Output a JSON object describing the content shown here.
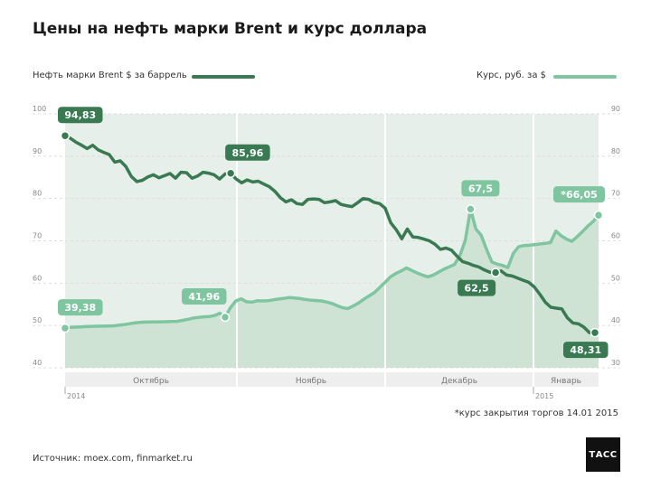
{
  "title": "Цены на нефть марки Brent и курс доллара",
  "legend": {
    "brent": "Нефть марки Brent  $ за баррель",
    "usd": "Курс, руб. за $"
  },
  "footnote": "*курс закрытия торгов 14.01 2015",
  "source": "Источник: moex.com, finmarket.ru",
  "logo_text": "ТАСС",
  "colors": {
    "brent": "#3a7a52",
    "usd": "#7fc6a0",
    "fill_light": "#e6efe9",
    "fill_dark": "#cfe3d5",
    "grid": "#dddddd",
    "axis_text": "#888888"
  },
  "chart_data": {
    "type": "line",
    "title": "Цены на нефть марки Brent и курс доллара",
    "x_period_labels": [
      "2014",
      "2015"
    ],
    "month_labels": [
      "Октябрь",
      "Ноябрь",
      "Декабрь",
      "Январь"
    ],
    "y_left": {
      "label": "",
      "range": [
        40,
        100
      ],
      "ticks": [
        100,
        90,
        80,
        70,
        60,
        50,
        40
      ],
      "tick_labels": [
        "100",
        "90",
        "80",
        "70",
        "60",
        "50",
        "40"
      ]
    },
    "y_right": {
      "label": "",
      "range": [
        30,
        90
      ],
      "ticks": [
        90,
        80,
        70,
        60,
        50,
        40,
        30
      ],
      "tick_labels": [
        "90",
        "80",
        "70",
        "60",
        "50",
        "40",
        "30"
      ]
    },
    "grid": true,
    "legend_position": "top",
    "series": [
      {
        "name": "Нефть марки Brent  $ за баррель",
        "axis": "left",
        "values": [
          94.83,
          94.2,
          93.3,
          92.6,
          91.8,
          92.6,
          91.5,
          90.9,
          90.4,
          88.6,
          88.9,
          87.6,
          85.2,
          84.0,
          84.3,
          85.1,
          85.6,
          84.9,
          85.4,
          85.9,
          84.8,
          86.2,
          86.1,
          84.8,
          85.3,
          86.2,
          86.0,
          85.6,
          84.6,
          85.8,
          85.96,
          84.6,
          83.7,
          84.4,
          83.9,
          84.1,
          83.4,
          82.8,
          81.7,
          80.2,
          79.2,
          79.7,
          78.8,
          78.6,
          79.8,
          79.9,
          79.8,
          79.0,
          79.2,
          79.5,
          78.6,
          78.3,
          78.1,
          79.0,
          80.0,
          79.8,
          79.1,
          78.8,
          77.7,
          74.3,
          72.6,
          70.5,
          72.8,
          70.9,
          70.8,
          70.4,
          70.0,
          69.2,
          68.0,
          68.3,
          67.8,
          66.4,
          65.1,
          64.7,
          64.2,
          63.8,
          63.1,
          62.6,
          62.5,
          62.9,
          61.9,
          61.7,
          61.2,
          60.7,
          60.2,
          59.1,
          57.4,
          55.5,
          54.3,
          54.1,
          53.9,
          51.8,
          50.6,
          50.4,
          49.6,
          48.3,
          48.31
        ],
        "labels": [
          {
            "index": 0,
            "text": "94,83"
          },
          {
            "index": 30,
            "text": "85,96"
          },
          {
            "index": 78,
            "text": "62,5"
          },
          {
            "index": 96,
            "text": "48,31"
          }
        ]
      },
      {
        "name": "Курс, руб. за $",
        "axis": "right",
        "values": [
          39.38,
          39.55,
          39.6,
          39.67,
          39.74,
          39.8,
          39.82,
          39.84,
          39.87,
          39.9,
          40.05,
          40.2,
          40.4,
          40.6,
          40.74,
          40.8,
          40.82,
          40.85,
          40.86,
          40.88,
          40.93,
          40.98,
          41.2,
          41.45,
          41.75,
          41.9,
          42.05,
          42.1,
          42.35,
          42.9,
          41.96,
          44.2,
          45.8,
          46.3,
          45.6,
          45.5,
          45.85,
          45.8,
          45.85,
          46.05,
          46.25,
          46.4,
          46.6,
          46.5,
          46.35,
          46.15,
          46.0,
          45.9,
          45.8,
          45.55,
          45.2,
          44.7,
          44.2,
          44.0,
          44.6,
          45.3,
          46.2,
          47.0,
          47.8,
          49.0,
          50.2,
          51.5,
          52.3,
          52.9,
          53.6,
          53.0,
          52.4,
          51.9,
          51.5,
          51.9,
          52.6,
          53.3,
          53.85,
          54.4,
          56.5,
          60.0,
          67.5,
          62.8,
          61.3,
          58.0,
          55.0,
          54.5,
          54.2,
          53.7,
          57.0,
          58.6,
          58.9,
          58.95,
          59.1,
          59.25,
          59.4,
          59.6,
          62.3,
          61.2,
          60.4,
          59.9,
          61.0,
          62.2,
          63.5,
          64.6,
          66.05
        ],
        "labels": [
          {
            "index": 0,
            "text": "39,38"
          },
          {
            "index": 30,
            "text": "41,96"
          },
          {
            "index": 76,
            "text": "67,5"
          },
          {
            "index": 100,
            "text": "*66,05"
          }
        ]
      }
    ]
  }
}
